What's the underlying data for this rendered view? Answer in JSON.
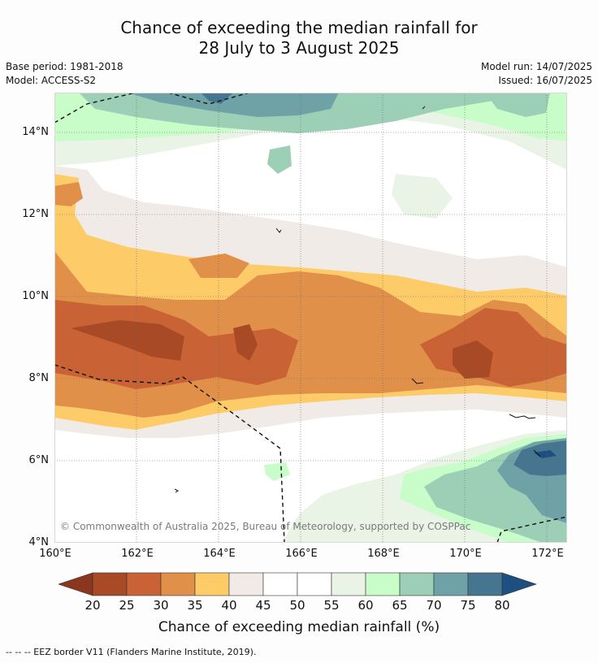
{
  "title_line1": "Chance of exceeding the median rainfall for",
  "title_line2": "28 July to 3 August 2025",
  "base_period": "Base period: 1981-2018",
  "model": "Model: ACCESS-S2",
  "model_run": "Model run: 14/07/2025",
  "issued": "Issued: 16/07/2025",
  "lat_labels": [
    "14°N",
    "12°N",
    "10°N",
    "8°N",
    "6°N",
    "4°N"
  ],
  "lon_labels": [
    "160°E",
    "162°E",
    "164°E",
    "166°E",
    "168°E",
    "170°E",
    "172°E"
  ],
  "copyright": "© Commonwealth of Australia 2025, Bureau of Meteorology, supported by COSPPac",
  "colorbar": {
    "title": "Chance of exceeding median rainfall (%)",
    "ticks": [
      "20",
      "25",
      "30",
      "35",
      "40",
      "45",
      "50",
      "55",
      "60",
      "65",
      "70",
      "75",
      "80"
    ],
    "colors": [
      "#a84a25",
      "#c96234",
      "#e09048",
      "#fecb69",
      "#f0ebe6",
      "#ffffff",
      "#ffffff",
      "#e9f4e6",
      "#c8fcc8",
      "#9ccfb6",
      "#6fa2a6",
      "#46768f"
    ],
    "under_color": "#8c3620",
    "over_color": "#1d4f80"
  },
  "footer": "--  --  -- EEZ border V11 (Flanders Marine Institute, 2019)."
}
